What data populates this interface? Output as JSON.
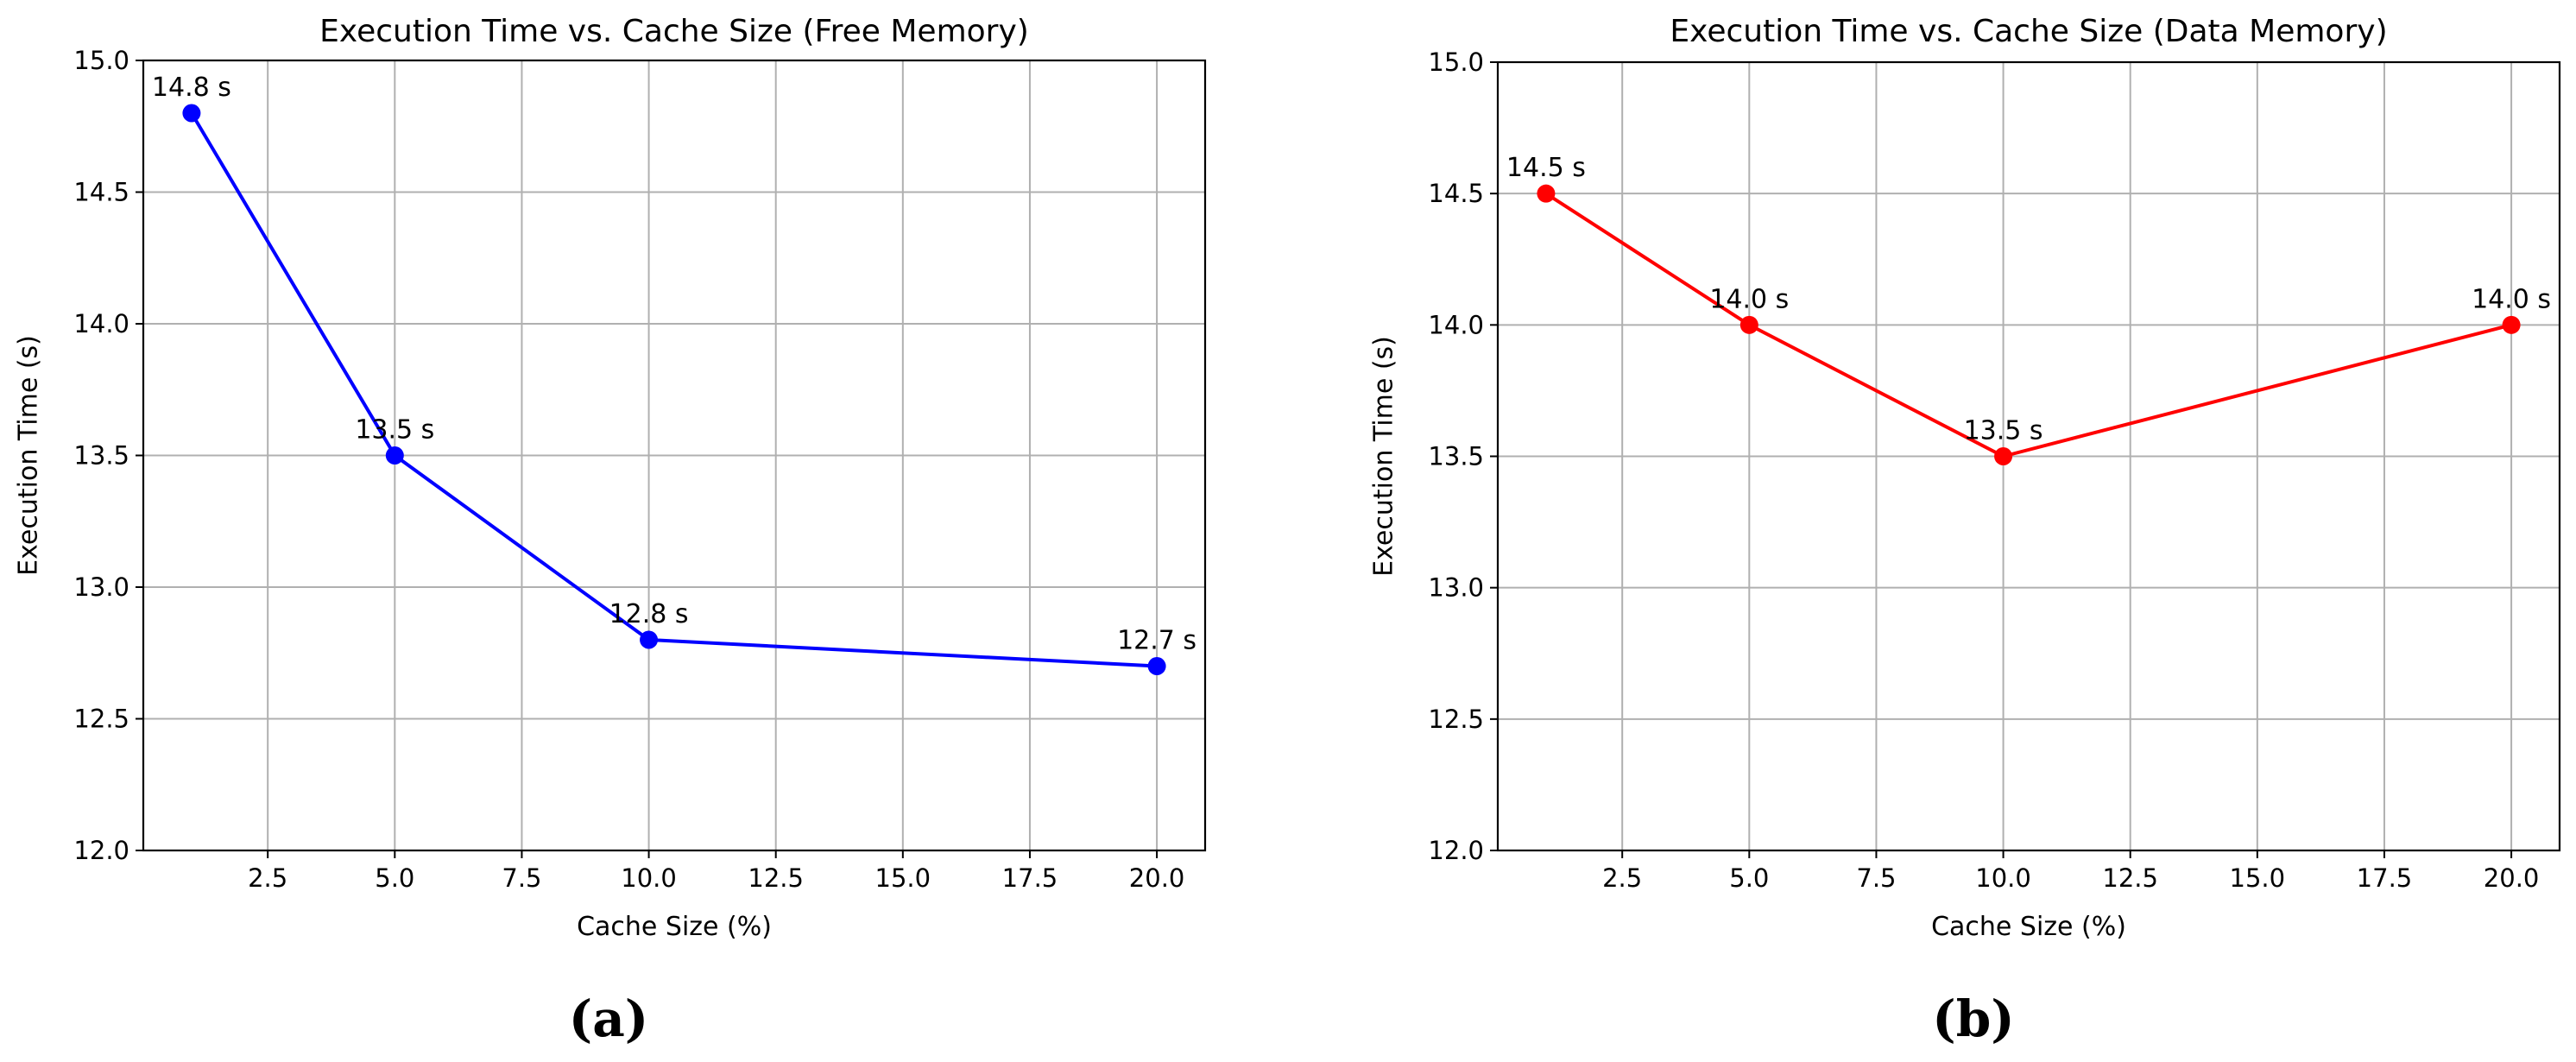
{
  "chart_data": [
    {
      "type": "line",
      "title": "Execution Time vs. Cache Size (Free Memory)",
      "xlabel": "Cache Size (%)",
      "ylabel": "Execution Time (s)",
      "caption": "(a)",
      "x": [
        1,
        5,
        10,
        20
      ],
      "series": [
        {
          "values": [
            14.8,
            13.5,
            12.8,
            12.7
          ],
          "color": "#0000ff",
          "labels": [
            "14.8 s",
            "13.5 s",
            "12.8 s",
            "12.7 s"
          ]
        }
      ],
      "xlim": [
        0.05,
        20.95
      ],
      "ylim": [
        12.0,
        15.0
      ],
      "xticks": [
        2.5,
        5.0,
        7.5,
        10.0,
        12.5,
        15.0,
        17.5,
        20.0
      ],
      "xtick_labels": [
        "2.5",
        "5.0",
        "7.5",
        "10.0",
        "12.5",
        "15.0",
        "17.5",
        "20.0"
      ],
      "yticks": [
        12.0,
        12.5,
        13.0,
        13.5,
        14.0,
        14.5,
        15.0
      ],
      "ytick_labels": [
        "12.0",
        "12.5",
        "13.0",
        "13.5",
        "14.0",
        "14.5",
        "15.0"
      ],
      "grid": true,
      "marker": "circle"
    },
    {
      "type": "line",
      "title": "Execution Time vs. Cache Size (Data Memory)",
      "xlabel": "Cache Size (%)",
      "ylabel": "Execution Time (s)",
      "caption": "(b)",
      "x": [
        1,
        5,
        10,
        20
      ],
      "series": [
        {
          "values": [
            14.5,
            14.0,
            13.5,
            14.0
          ],
          "color": "#ff0000",
          "labels": [
            "14.5 s",
            "14.0 s",
            "13.5 s",
            "14.0 s"
          ]
        }
      ],
      "xlim": [
        0.05,
        20.95
      ],
      "ylim": [
        12.0,
        15.0
      ],
      "xticks": [
        2.5,
        5.0,
        7.5,
        10.0,
        12.5,
        15.0,
        17.5,
        20.0
      ],
      "xtick_labels": [
        "2.5",
        "5.0",
        "7.5",
        "10.0",
        "12.5",
        "15.0",
        "17.5",
        "20.0"
      ],
      "yticks": [
        12.0,
        12.5,
        13.0,
        13.5,
        14.0,
        14.5,
        15.0
      ],
      "ytick_labels": [
        "12.0",
        "12.5",
        "13.0",
        "13.5",
        "14.0",
        "14.5",
        "15.0"
      ],
      "grid": true,
      "marker": "circle"
    }
  ]
}
